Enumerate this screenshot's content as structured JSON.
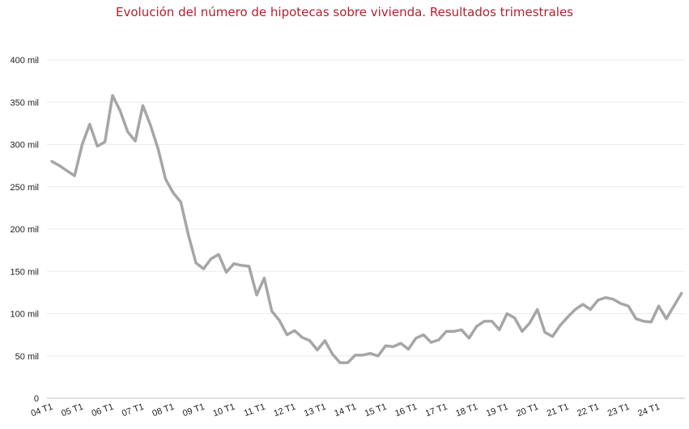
{
  "chart_data": {
    "type": "line",
    "title": "Evolución del número de hipotecas sobre vivienda. Resultados trimestrales",
    "xlabel": "",
    "ylabel": "",
    "ylim": [
      0,
      400000
    ],
    "yticks": [
      {
        "value": 0,
        "label": "0"
      },
      {
        "value": 50000,
        "label": "50 mil"
      },
      {
        "value": 100000,
        "label": "100 mil"
      },
      {
        "value": 150000,
        "label": "150 mil"
      },
      {
        "value": 200000,
        "label": "200 mil"
      },
      {
        "value": 250000,
        "label": "250 mil"
      },
      {
        "value": 300000,
        "label": "300 mil"
      },
      {
        "value": 350000,
        "label": "350 mil"
      },
      {
        "value": 400000,
        "label": "400 mil"
      }
    ],
    "grid": true,
    "line_color": "#a6a6a6",
    "x_tick_labels": [
      "04 T1",
      "05 T1",
      "06 T1",
      "07 T1",
      "08 T1",
      "09 T1",
      "10 T1",
      "11 T1",
      "12 T1",
      "13 T1",
      "14 T1",
      "15 T1",
      "16 T1",
      "17 T1",
      "18 T1",
      "19 T1",
      "20 T1",
      "21 T1",
      "22 T1",
      "23 T1",
      "24 T1"
    ],
    "periods_per_tick": 4,
    "series": [
      {
        "values": [
          280000,
          275000,
          269000,
          263000,
          300000,
          324000,
          298000,
          303000,
          358000,
          340000,
          315000,
          304000,
          346000,
          323000,
          295000,
          259000,
          243000,
          232000,
          193000,
          160000,
          153000,
          165000,
          170000,
          149000,
          159000,
          157000,
          156000,
          122000,
          142000,
          103000,
          92000,
          75000,
          80000,
          72000,
          68000,
          57000,
          68000,
          52000,
          42000,
          42000,
          51000,
          51000,
          53000,
          50000,
          62000,
          61000,
          65000,
          58000,
          71000,
          75000,
          66000,
          69000,
          79000,
          79000,
          81000,
          71000,
          85000,
          91000,
          91000,
          81000,
          100000,
          95000,
          79000,
          89000,
          105000,
          78000,
          73000,
          86000,
          96000,
          105000,
          111000,
          105000,
          116000,
          119000,
          117000,
          112000,
          109000,
          94000,
          91000,
          90000,
          109000,
          94000,
          109000,
          124000
        ]
      }
    ]
  }
}
